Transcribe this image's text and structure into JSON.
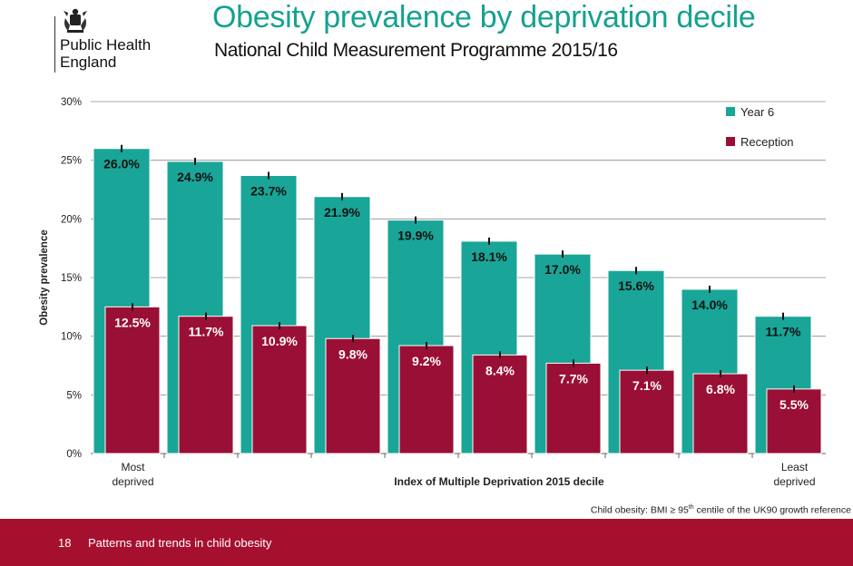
{
  "header": {
    "org_name_line1": "Public Health",
    "org_name_line2": "England",
    "title": "Obesity prevalence by deprivation decile",
    "subtitle": "National Child Measurement Programme 2015/16"
  },
  "icons": {
    "logo": "royal-coat-of-arms-icon"
  },
  "note": {
    "prefix": "Child obesity: BMI ≥ 95",
    "sup": "th",
    "suffix": " centile of the UK90 growth reference"
  },
  "footer": {
    "page_number": "18",
    "text": "Patterns and trends in child obesity"
  },
  "colors": {
    "year6": "#19a597",
    "reception": "#9a0f35",
    "title": "#15a191",
    "footer": "#a6102f"
  },
  "chart_data": {
    "type": "bar",
    "categories": [
      "1",
      "2",
      "3",
      "4",
      "5",
      "6",
      "7",
      "8",
      "9",
      "10"
    ],
    "category_labels": {
      "first": [
        "Most",
        "deprived"
      ],
      "last": [
        "Least",
        "deprived"
      ]
    },
    "xlabel": "Index of Multiple Deprivation 2015 decile",
    "ylabel": "Obesity prevalence",
    "ylim": [
      0,
      30
    ],
    "yticks": [
      0,
      5,
      10,
      15,
      20,
      25,
      30
    ],
    "ytick_labels": [
      "0%",
      "5%",
      "10%",
      "15%",
      "20%",
      "25%",
      "30%"
    ],
    "grid": true,
    "legend_position": "top-right",
    "series": [
      {
        "name": "Year 6",
        "values": [
          26.0,
          24.9,
          23.7,
          21.9,
          19.9,
          18.1,
          17.0,
          15.6,
          14.0,
          11.7
        ],
        "labels": [
          "26.0%",
          "24.9%",
          "23.7%",
          "21.9%",
          "19.9%",
          "18.1%",
          "17.0%",
          "15.6%",
          "14.0%",
          "11.7%"
        ]
      },
      {
        "name": "Reception",
        "values": [
          12.5,
          11.7,
          10.9,
          9.8,
          9.2,
          8.4,
          7.7,
          7.1,
          6.8,
          5.5
        ],
        "labels": [
          "12.5%",
          "11.7%",
          "10.9%",
          "9.8%",
          "9.2%",
          "8.4%",
          "7.7%",
          "7.1%",
          "6.8%",
          "5.5%"
        ]
      }
    ]
  }
}
